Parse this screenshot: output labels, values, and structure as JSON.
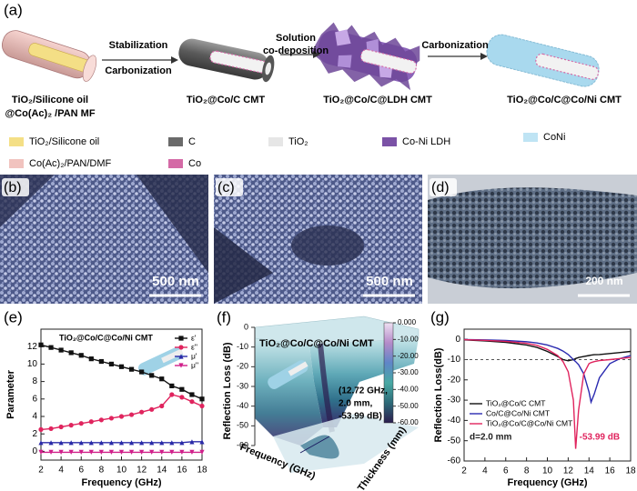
{
  "panel_a": {
    "label": "(a)",
    "captions": [
      [
        "TiO₂/Silicone oil",
        "@Co(Ac)₂ /PAN MF"
      ],
      [
        "TiO₂@Co/C CMT"
      ],
      [
        "TiO₂@Co/C@LDH CMT"
      ],
      [
        "TiO₂@Co/C@Co/Ni CMT"
      ]
    ],
    "arrows": [
      [
        "Stabilization",
        "Carbonization"
      ],
      [
        "Solution",
        "co-deposition"
      ],
      [
        "Carbonization"
      ]
    ],
    "legend": [
      {
        "name": "TiO₂/Silicone oil",
        "color": "#f4df86"
      },
      {
        "name": "C",
        "color": "#6a6a6a"
      },
      {
        "name": "TiO₂",
        "color": "#e6e6e6"
      },
      {
        "name": "Co-Ni LDH",
        "color": "#7b52a6"
      },
      {
        "name": "CoNi",
        "color": "#bfe4f4"
      },
      {
        "name": "Co(Ac)₂/PAN/DMF",
        "color": "#f1c3bf"
      },
      {
        "name": "Co",
        "color": "#d46aa6"
      }
    ]
  },
  "images": [
    {
      "label": "(b)",
      "scale": "500 nm"
    },
    {
      "label": "(c)",
      "scale": "500 nm"
    },
    {
      "label": "(d)",
      "scale": "200 nm"
    }
  ],
  "panel_f": {
    "label": "(f)",
    "title": "TiO₂@Co/C@Co/Ni CMT",
    "ylabel": "Reflection Loss (dB)",
    "yticks": [
      0,
      -10,
      -20,
      -30,
      -40,
      -50,
      -60
    ],
    "colorbar_ticks": [
      {
        "value": 0,
        "label": "0.000"
      },
      {
        "value": -10,
        "label": "-10.00"
      },
      {
        "value": -20,
        "label": "-20.00"
      },
      {
        "value": -30,
        "label": "-30.00"
      },
      {
        "value": -40,
        "label": "-40.00"
      },
      {
        "value": -50,
        "label": "-50.00"
      },
      {
        "value": -60,
        "label": "-60.00"
      }
    ],
    "annotation": [
      "(12.72 GHz,",
      "2.0 mm,",
      "-53.99 dB)"
    ],
    "xlabel": "Frequency (GHz)",
    "zlabel": "Thickness (mm)"
  },
  "chart_data": [
    {
      "type": "line",
      "label": "(e)",
      "title": "TiO₂@Co/C@Co/Ni CMT",
      "xlabel": "Frequency (GHz)",
      "ylabel": "Parameter",
      "x": [
        2,
        3,
        4,
        5,
        6,
        7,
        8,
        9,
        10,
        11,
        12,
        13,
        14,
        15,
        16,
        17,
        18
      ],
      "xlim": [
        2,
        18
      ],
      "xticks": [
        2,
        4,
        6,
        8,
        10,
        12,
        14,
        16,
        18
      ],
      "ylim": [
        -1,
        14
      ],
      "yticks": [
        0,
        2,
        4,
        6,
        8,
        10,
        12
      ],
      "legend": "top-right",
      "series": [
        {
          "name": "ε'",
          "color": "#111111",
          "marker": "square",
          "values": [
            12.2,
            11.9,
            11.6,
            11.3,
            11.0,
            10.6,
            10.3,
            10.0,
            9.7,
            9.4,
            9.1,
            8.7,
            8.3,
            7.5,
            7.1,
            6.5,
            6.0
          ]
        },
        {
          "name": "ε''",
          "color": "#e0245e",
          "marker": "circle",
          "values": [
            2.5,
            2.6,
            2.8,
            3.0,
            3.2,
            3.4,
            3.6,
            3.8,
            4.0,
            4.2,
            4.5,
            4.8,
            5.2,
            6.5,
            6.2,
            5.7,
            5.2
          ]
        },
        {
          "name": "μ'",
          "color": "#2a2aa8",
          "marker": "triangle",
          "values": [
            1.0,
            1.0,
            1.0,
            1.0,
            1.0,
            1.0,
            1.0,
            1.0,
            1.0,
            1.0,
            1.0,
            1.0,
            1.0,
            1.0,
            1.0,
            1.1,
            1.1
          ]
        },
        {
          "name": "μ''",
          "color": "#d0208a",
          "marker": "triangle-down",
          "values": [
            -0.1,
            -0.1,
            -0.1,
            -0.1,
            -0.1,
            -0.1,
            -0.1,
            -0.1,
            -0.1,
            -0.1,
            -0.1,
            -0.1,
            -0.1,
            -0.1,
            -0.1,
            -0.1,
            -0.1
          ]
        }
      ]
    },
    {
      "type": "line",
      "label": "(g)",
      "xlabel": "Frequency (GHz)",
      "ylabel": "Reflection Loss(dB)",
      "x": [
        2,
        4,
        6,
        8,
        9,
        10,
        11,
        11.5,
        12,
        12.5,
        12.72,
        13,
        13.5,
        14,
        14.2,
        14.5,
        15,
        16,
        17,
        18
      ],
      "xlim": [
        2,
        18
      ],
      "xticks": [
        2,
        4,
        6,
        8,
        10,
        12,
        14,
        16,
        18
      ],
      "ylim": [
        -60,
        5
      ],
      "yticks": [
        0,
        -10,
        -20,
        -30,
        -40,
        -50,
        -60
      ],
      "reference_line": -10,
      "legend": "center-left",
      "annotations": [
        "d=2.0 mm",
        "-53.99 dB"
      ],
      "series": [
        {
          "name": "TiO₂@Co/C CMT",
          "color": "#111111",
          "values": [
            -0.3,
            -0.8,
            -1.5,
            -2.8,
            -4,
            -6,
            -8.5,
            -10,
            -10.6,
            -10,
            -9.5,
            -9,
            -8.5,
            -8,
            -7.8,
            -7.6,
            -7.5,
            -7,
            -6.5,
            -6
          ]
        },
        {
          "name": "Co/C@Co/Ni CMT",
          "color": "#2a2ab0",
          "values": [
            -0.1,
            -0.3,
            -0.6,
            -1.2,
            -1.8,
            -2.8,
            -4.5,
            -5.8,
            -7.5,
            -10,
            -11,
            -12.5,
            -17,
            -26,
            -31,
            -27,
            -19,
            -12,
            -9.5,
            -8
          ]
        },
        {
          "name": "TiO₂@Co/C@Co/Ni CMT",
          "color": "#e0245e",
          "values": [
            -0.2,
            -0.5,
            -1,
            -2,
            -3,
            -5,
            -8,
            -11,
            -16,
            -30,
            -53.99,
            -35,
            -17,
            -12,
            -11.5,
            -11,
            -10.5,
            -10,
            -9.5,
            -9
          ]
        }
      ]
    }
  ]
}
